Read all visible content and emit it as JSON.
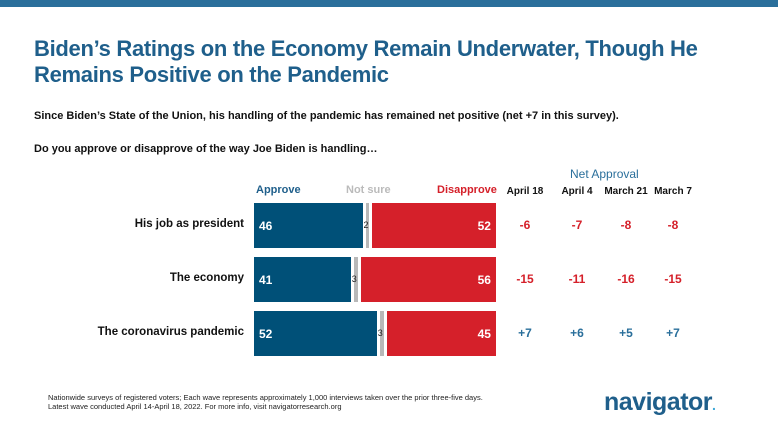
{
  "title": "Biden’s Ratings on the Economy Remain Underwater, Though He Remains Positive on the Pandemic",
  "subtitle": "Since Biden’s State of the Union, his handling of the pandemic has remained net positive (net +7 in this survey).",
  "question": "Do you approve or disapprove of the way Joe Biden is handling…",
  "footnote_1": "Nationwide surveys of registered voters; Each wave represents approximately 1,000 interviews taken over the prior three-five days.",
  "footnote_2": "Latest wave conducted April 14-April 18, 2022. For more info, visit navigatorresearch.org",
  "logo": "navigator",
  "colors": {
    "approve": "#005078",
    "not_sure": "#b8b8b8",
    "disapprove": "#d5202a",
    "positive": "#2a6f9b",
    "negative": "#d5202a"
  },
  "chart_data": {
    "type": "bar",
    "stacked": true,
    "legend": [
      "Approve",
      "Not sure",
      "Disapprove"
    ],
    "categories": [
      "His job as president",
      "The economy",
      "The coronavirus pandemic"
    ],
    "series": [
      {
        "name": "Approve",
        "values": [
          46,
          41,
          52
        ]
      },
      {
        "name": "Not sure",
        "values": [
          2,
          3,
          3
        ]
      },
      {
        "name": "Disapprove",
        "values": [
          52,
          56,
          45
        ]
      }
    ],
    "net_approval": {
      "title": "Net Approval",
      "columns": [
        "April 18",
        "April 4",
        "March 21",
        "March 7"
      ],
      "rows": [
        [
          "-6",
          "-7",
          "-8",
          "-8"
        ],
        [
          "-15",
          "-11",
          "-16",
          "-15"
        ],
        [
          "+7",
          "+6",
          "+5",
          "+7"
        ]
      ]
    }
  }
}
